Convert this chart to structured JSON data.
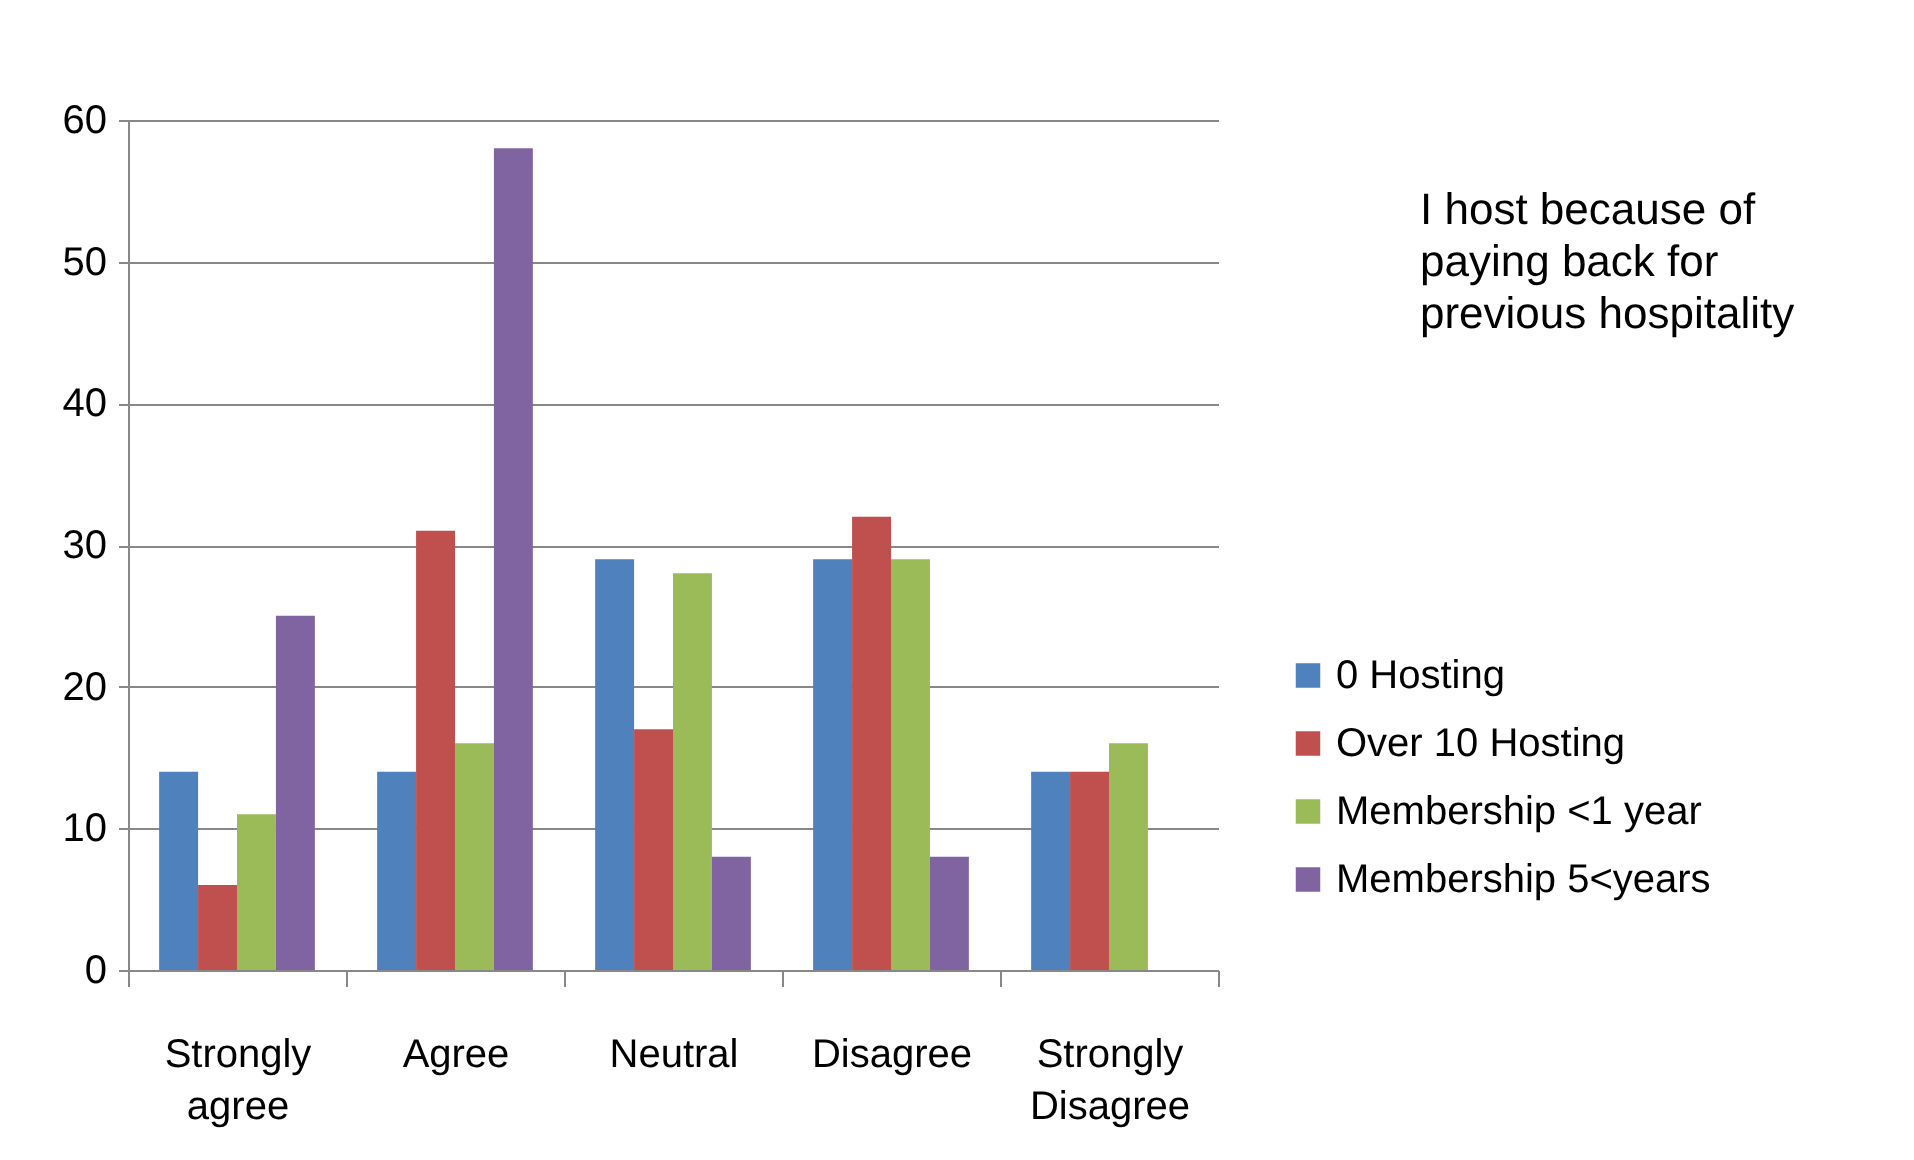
{
  "chart_data": {
    "type": "bar",
    "title": "I host because of paying back for previous hospitality",
    "categories": [
      "Strongly agree",
      "Agree",
      "Neutral",
      "Disagree",
      "Strongly Disagree"
    ],
    "series": [
      {
        "name": "0 Hosting",
        "color": "#4f81bd",
        "values": [
          14,
          14,
          29,
          29,
          14
        ]
      },
      {
        "name": "Over 10 Hosting",
        "color": "#c0504d",
        "values": [
          6,
          31,
          17,
          32,
          14
        ]
      },
      {
        "name": "Membership <1 year",
        "color": "#9bbb59",
        "values": [
          11,
          16,
          28,
          29,
          16
        ]
      },
      {
        "name": "Membership 5<years",
        "color": "#8064a2",
        "values": [
          25,
          58,
          8,
          8,
          0
        ]
      }
    ],
    "ylim": [
      0,
      60
    ],
    "yticks": [
      0,
      10,
      20,
      30,
      40,
      50,
      60
    ],
    "grid": "y",
    "legend": "right"
  }
}
